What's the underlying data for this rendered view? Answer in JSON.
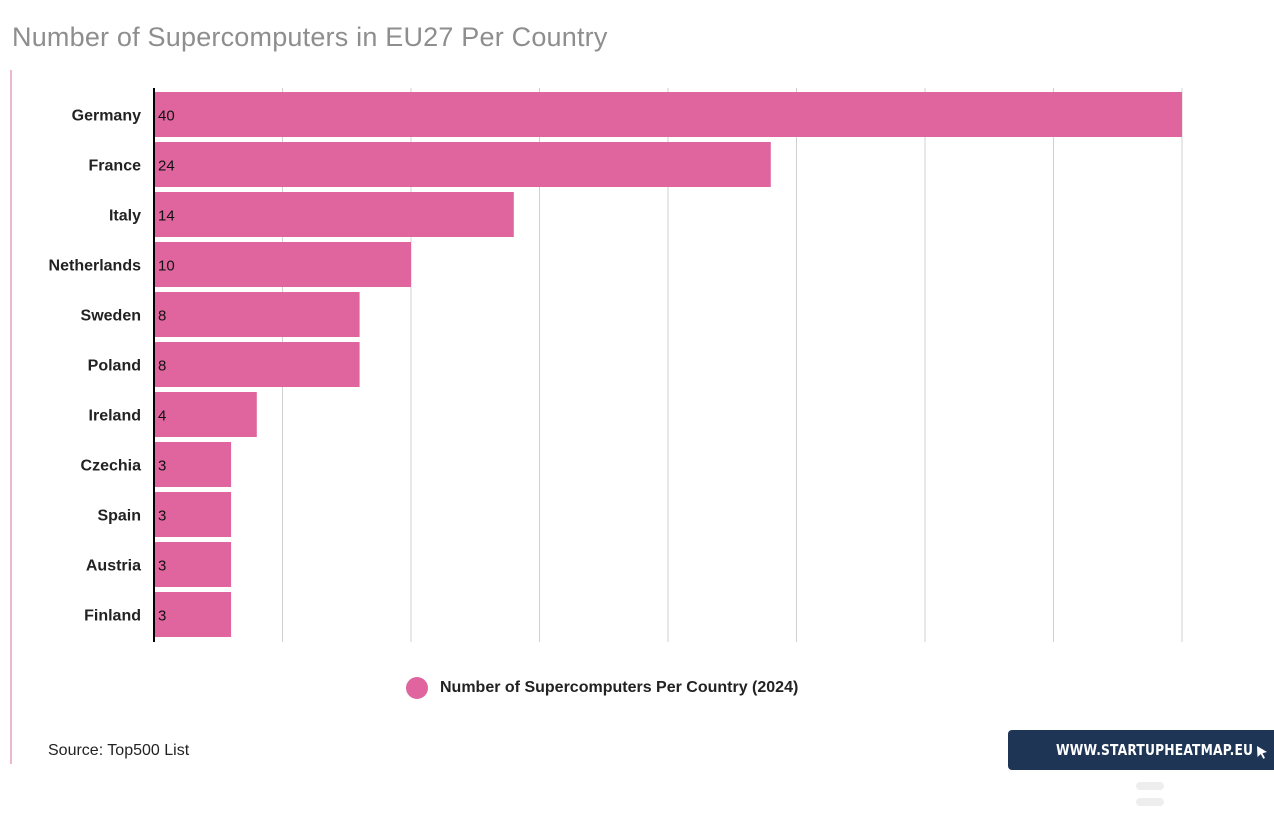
{
  "colors": {
    "bar": "#e0659f",
    "axis": "#000000",
    "grid": "#d0d0d0",
    "title": "#8e8e8e",
    "brand_bg": "#1e3556"
  },
  "title": "Number of Supercomputers in EU27 Per Country",
  "legend": {
    "label": "Number of Supercomputers Per Country (2024)"
  },
  "source": "Source: Top500 List",
  "brand": {
    "text": "WWW.STARTUPHEATMAP.EU",
    "icon": "cursor-arrow-icon"
  },
  "chart_data": {
    "type": "bar",
    "orientation": "horizontal",
    "title": "Number of Supercomputers in EU27 Per Country",
    "categories": [
      "Germany",
      "France",
      "Italy",
      "Netherlands",
      "Sweden",
      "Poland",
      "Ireland",
      "Czechia",
      "Spain",
      "Austria",
      "Finland"
    ],
    "series": [
      {
        "name": "Number of Supercomputers Per Country (2024)",
        "values": [
          40,
          24,
          14,
          10,
          8,
          8,
          4,
          3,
          3,
          3,
          3
        ]
      }
    ],
    "data_labels": [
      "40",
      "24",
      "14",
      "10",
      "8",
      "8",
      "4",
      "3",
      "3",
      "3",
      "3"
    ],
    "xlim": [
      0,
      40
    ],
    "x_gridlines": [
      0,
      5,
      10,
      15,
      20,
      25,
      30,
      35,
      40
    ],
    "x_tick_labels_shown": false,
    "grid": true,
    "legend_position": "bottom"
  }
}
